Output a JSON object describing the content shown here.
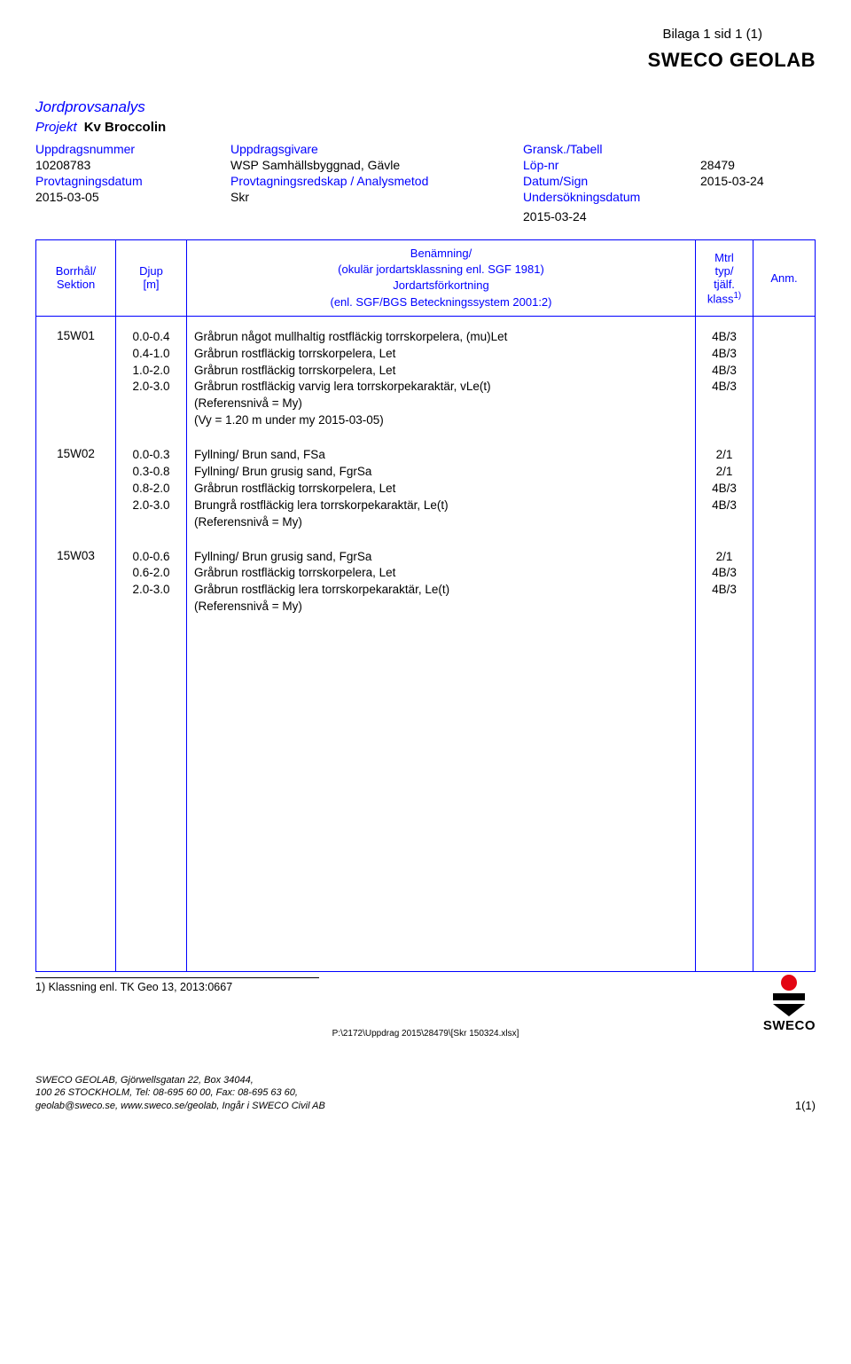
{
  "header": {
    "bilaga": "Bilaga 1 sid 1 (1)",
    "brand": "SWECO GEOLAB",
    "doc_title": "Jordprovsanalys",
    "projekt_label": "Projekt",
    "projekt_value": "Kv Broccolin",
    "labels": {
      "uppdragsnummer": "Uppdragsnummer",
      "uppdragsgivare": "Uppdragsgivare",
      "gransk": "Gransk./Tabell",
      "provtagningsdatum": "Provtagningsdatum",
      "provtagningsredskap": "Provtagningsredskap / Analysmetod",
      "datum_sign": "Datum/Sign",
      "lop_nr": "Löp-nr",
      "undersokningsdatum": "Undersökningsdatum"
    },
    "values": {
      "uppdragsnummer": "10208783",
      "uppdragsgivare": "WSP Samhällsbyggnad, Gävle",
      "lop_nr": "28479",
      "provtagningsdatum": "2015-03-05",
      "provtagningsredskap": "Skr",
      "datum_sign": "2015-03-24",
      "undersokningsdatum": "2015-03-24"
    }
  },
  "table": {
    "columns": {
      "borrhal_line1": "Borrhål/",
      "borrhal_line2": "Sektion",
      "djup_line1": "Djup",
      "djup_line2": "[m]",
      "desc_line1": "Benämning/",
      "desc_line2": "(okulär jordartsklassning enl. SGF 1981)",
      "desc_line3": "Jordartsförkortning",
      "desc_line4": "(enl. SGF/BGS Beteckningssystem 2001:2)",
      "mtrl_line1": "Mtrl",
      "mtrl_line2": "typ/",
      "mtrl_line3": "tjälf.",
      "mtrl_line4": "klass",
      "mtrl_sup": "1)",
      "anm": "Anm."
    },
    "samples": [
      {
        "id": "15W01",
        "rows": [
          {
            "depth": "0.0-0.4",
            "desc": "Gråbrun något mullhaltig rostfläckig torrskorpelera, (mu)Let",
            "mtrl": "4B/3"
          },
          {
            "depth": "0.4-1.0",
            "desc": "Gråbrun rostfläckig torrskorpelera, Let",
            "mtrl": "4B/3"
          },
          {
            "depth": "1.0-2.0",
            "desc": "Gråbrun rostfläckig torrskorpelera, Let",
            "mtrl": "4B/3"
          },
          {
            "depth": "2.0-3.0",
            "desc": "Gråbrun rostfläckig varvig lera torrskorpekaraktär, vLe(t)",
            "mtrl": "4B/3"
          },
          {
            "depth": "",
            "desc": "(Referensnivå = My)",
            "mtrl": ""
          },
          {
            "depth": "",
            "desc": "(Vy = 1.20 m under my 2015-03-05)",
            "mtrl": ""
          }
        ]
      },
      {
        "id": "15W02",
        "rows": [
          {
            "depth": "0.0-0.3",
            "desc": "Fyllning/ Brun sand, FSa",
            "mtrl": "2/1"
          },
          {
            "depth": "0.3-0.8",
            "desc": "Fyllning/ Brun grusig sand, FgrSa",
            "mtrl": "2/1"
          },
          {
            "depth": "0.8-2.0",
            "desc": "Gråbrun rostfläckig torrskorpelera, Let",
            "mtrl": "4B/3"
          },
          {
            "depth": "2.0-3.0",
            "desc": "Brungrå rostfläckig lera torrskorpekaraktär, Le(t)",
            "mtrl": "4B/3"
          },
          {
            "depth": "",
            "desc": "(Referensnivå = My)",
            "mtrl": ""
          }
        ]
      },
      {
        "id": "15W03",
        "rows": [
          {
            "depth": "0.0-0.6",
            "desc": "Fyllning/ Brun grusig sand, FgrSa",
            "mtrl": "2/1"
          },
          {
            "depth": "0.6-2.0",
            "desc": "Gråbrun rostfläckig torrskorpelera, Let",
            "mtrl": "4B/3"
          },
          {
            "depth": "2.0-3.0",
            "desc": "Gråbrun rostfläckig lera torrskorpekaraktär, Le(t)",
            "mtrl": "4B/3"
          },
          {
            "depth": "",
            "desc": "(Referensnivå = My)",
            "mtrl": ""
          }
        ]
      }
    ]
  },
  "footnote": "1) Klassning enl. TK Geo 13, 2013:0667",
  "filepath": "P:\\2172\\Uppdrag 2015\\28479\\[Skr 150324.xlsx]",
  "footer": {
    "line1": "SWECO GEOLAB, Gjörwellsgatan 22, Box 34044,",
    "line2": "100 26 STOCKHOLM, Tel: 08-695 60 00, Fax: 08-695 63 60,",
    "line3": "geolab@sweco.se, www.sweco.se/geolab, Ingår i SWECO Civil AB",
    "page": "1(1)"
  },
  "logo_text": "SWECO",
  "colors": {
    "blue": "#0000ff",
    "black": "#000000",
    "logo_red": "#e30613"
  }
}
